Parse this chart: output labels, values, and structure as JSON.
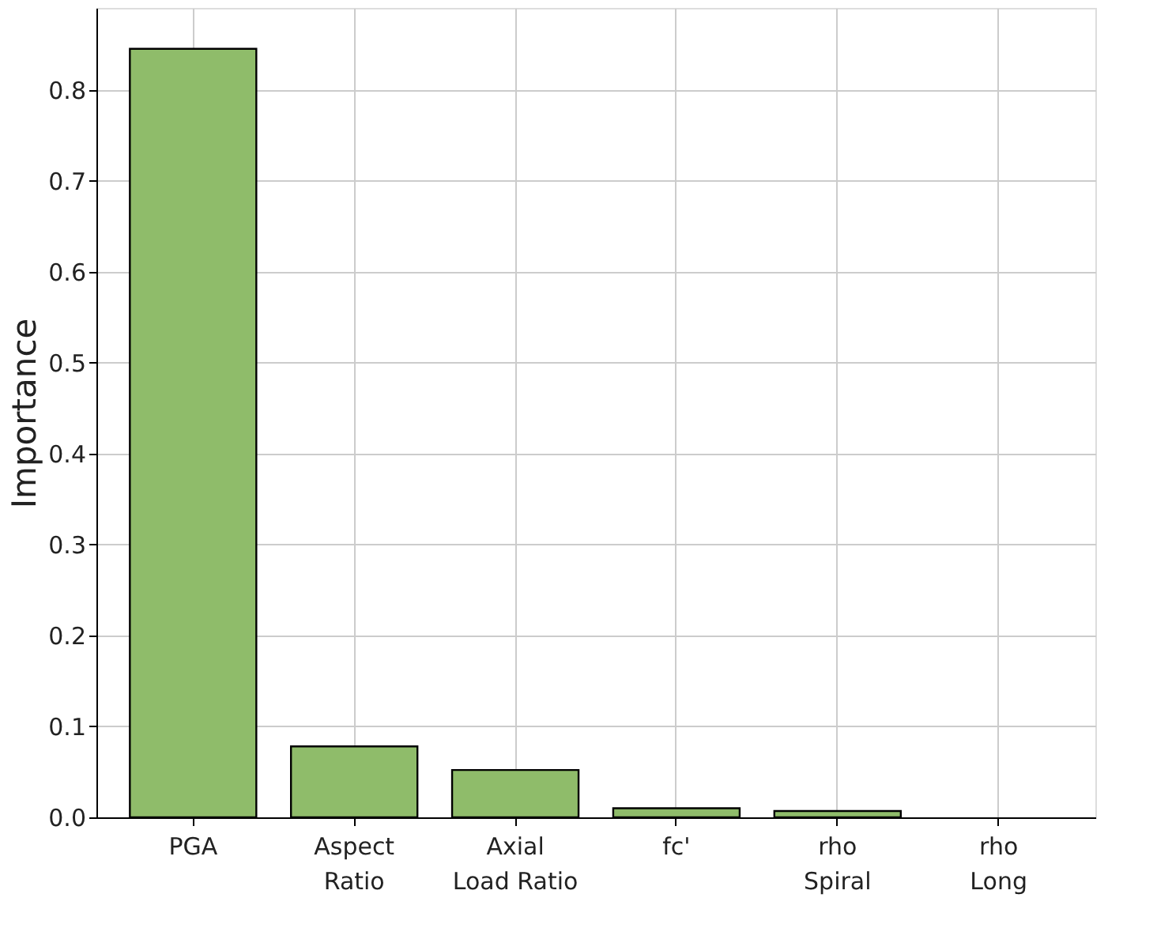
{
  "chart_data": {
    "type": "bar",
    "ylabel": "Importance",
    "categories": [
      "PGA",
      "Aspect\nRatio",
      "Axial\nLoad Ratio",
      "fc'",
      "rho\nSpiral",
      "rho\nLong"
    ],
    "values": [
      0.845,
      0.078,
      0.052,
      0.01,
      0.007,
      null
    ],
    "color": "#8fbc6a",
    "ylim": [
      0,
      0.89
    ],
    "yticks": [
      {
        "value": 0,
        "label": "0.0"
      },
      0.1,
      0.2,
      0.3,
      0.4,
      0.5,
      0.6,
      0.7,
      0.8
    ],
    "grid": true
  }
}
